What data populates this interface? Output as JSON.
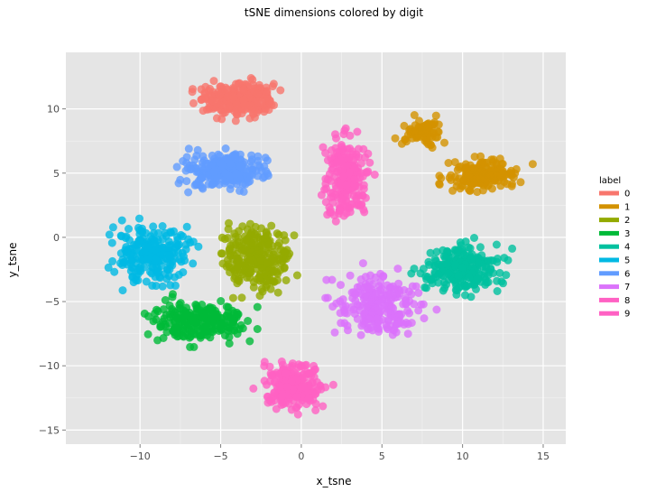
{
  "chart_data": {
    "type": "scatter",
    "title": "tSNE dimensions colored by digit",
    "xlabel": "x_tsne",
    "ylabel": "y_tsne",
    "xlim": [
      -14.6,
      16.4
    ],
    "ylim": [
      -16.1,
      14.4
    ],
    "x_ticks": [
      -10,
      -5,
      0,
      5,
      10,
      15
    ],
    "y_ticks": [
      -15,
      -10,
      -5,
      0,
      5,
      10
    ],
    "x_tick_labels": [
      "−10",
      "−5",
      "0",
      "5",
      "10",
      "15"
    ],
    "y_tick_labels": [
      "−15",
      "−10",
      "−5",
      "0",
      "5",
      "10"
    ],
    "grid": true,
    "legend": {
      "title": "label",
      "position": "right"
    },
    "series": [
      {
        "name": "0",
        "color": "#F8766D",
        "clusters": [
          {
            "x": [
              -7.5,
              -0.5
            ],
            "y": [
              8.8,
              12.8
            ],
            "n": 260
          }
        ]
      },
      {
        "name": "1",
        "color": "#D39200",
        "clusters": [
          {
            "x": [
              5.5,
              9.5
            ],
            "y": [
              6.5,
              9.8
            ],
            "n": 80
          },
          {
            "x": [
              7.5,
              15.0
            ],
            "y": [
              3.0,
              6.8
            ],
            "n": 170
          }
        ]
      },
      {
        "name": "2",
        "color": "#93AA00",
        "clusters": [
          {
            "x": [
              -6.0,
              0.5
            ],
            "y": [
              -5.5,
              2.2
            ],
            "n": 240
          }
        ]
      },
      {
        "name": "3",
        "color": "#00BA38",
        "clusters": [
          {
            "x": [
              -11.0,
              -1.5
            ],
            "y": [
              -9.0,
              -4.0
            ],
            "n": 230
          }
        ]
      },
      {
        "name": "4",
        "color": "#00C19F",
        "clusters": [
          {
            "x": [
              6.0,
              14.0
            ],
            "y": [
              -5.5,
              0.5
            ],
            "n": 230
          }
        ]
      },
      {
        "name": "5",
        "color": "#00B9E3",
        "clusters": [
          {
            "x": [
              -13.0,
              -5.5
            ],
            "y": [
              -5.0,
              2.5
            ],
            "n": 220
          }
        ]
      },
      {
        "name": "6",
        "color": "#619CFF",
        "clusters": [
          {
            "x": [
              -9.0,
              -0.5
            ],
            "y": [
              3.0,
              7.5
            ],
            "n": 250
          }
        ]
      },
      {
        "name": "7",
        "color": "#DB72FB",
        "clusters": [
          {
            "x": [
              0.5,
              9.0
            ],
            "y": [
              -9.0,
              -1.5
            ],
            "n": 220
          }
        ]
      },
      {
        "name": "8",
        "color": "#FF61C3",
        "clusters": [
          {
            "x": [
              -3.5,
              2.5
            ],
            "y": [
              -14.5,
              -8.5
            ],
            "n": 220
          }
        ]
      },
      {
        "name": "9",
        "color": "#FF61C3",
        "clusters": [
          {
            "x": [
              0.5,
              5.0
            ],
            "y": [
              -0.5,
              10.0
            ],
            "n": 220
          }
        ]
      }
    ]
  }
}
